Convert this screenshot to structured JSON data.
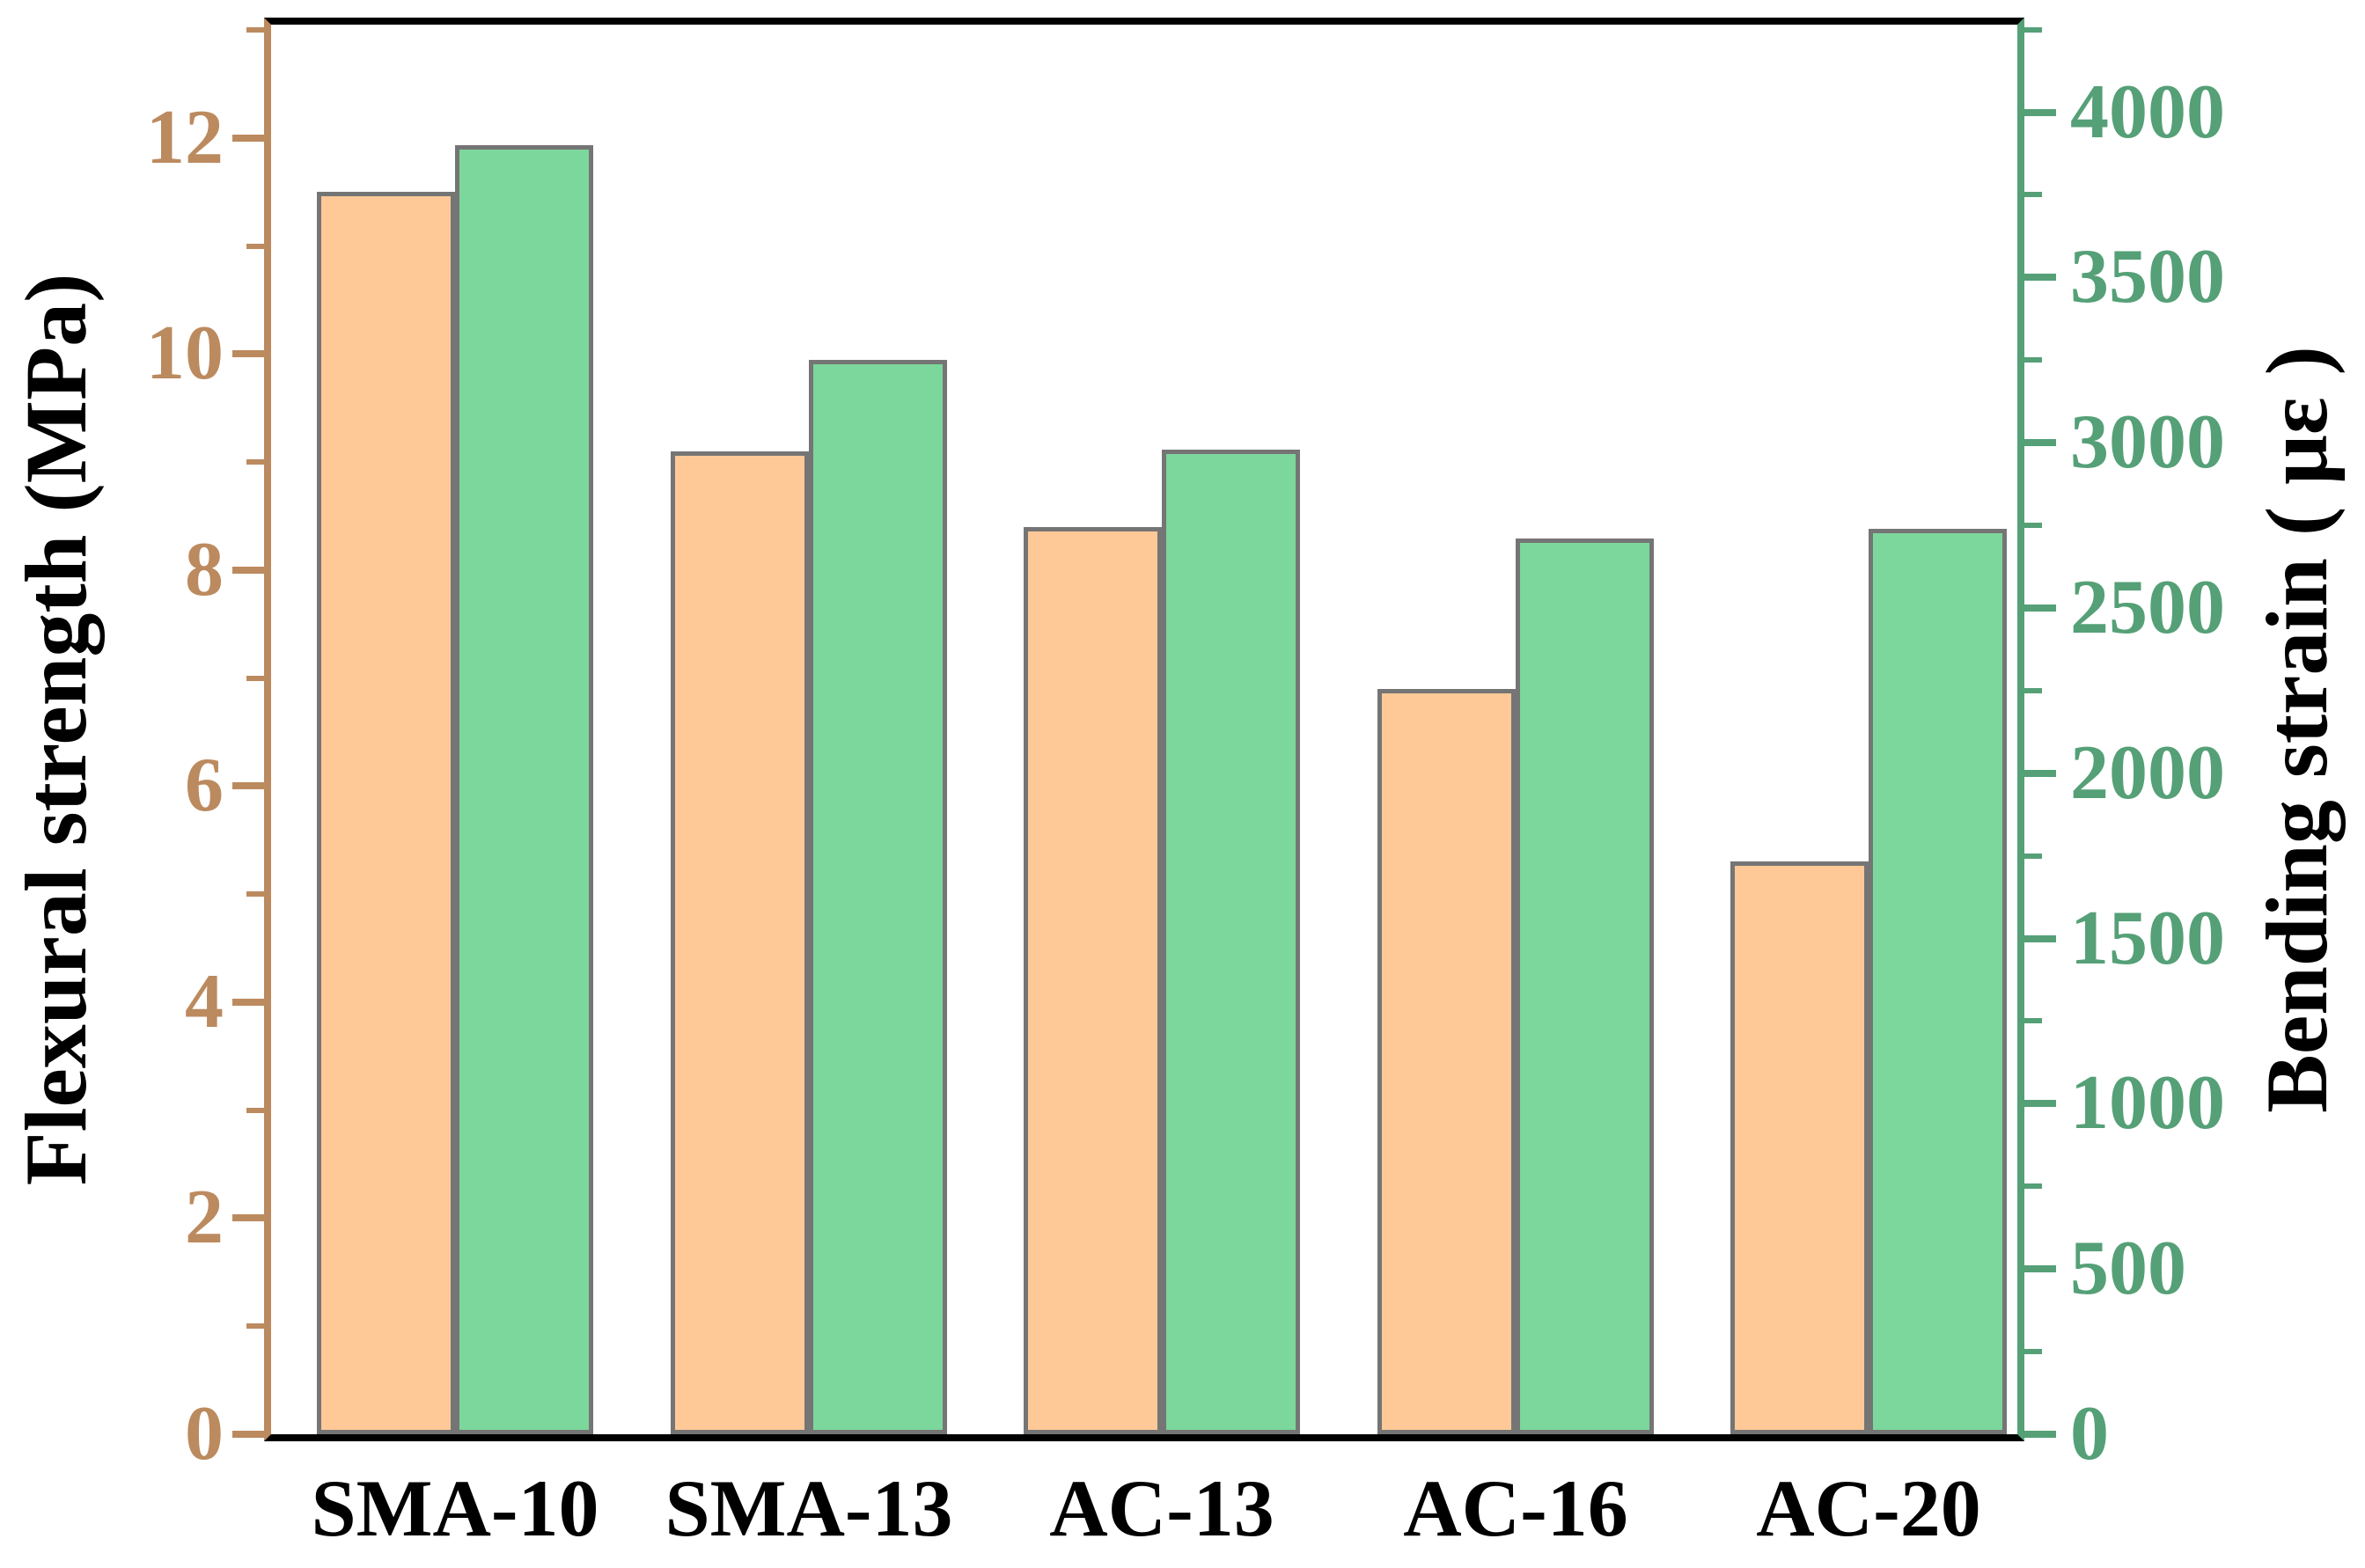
{
  "figure": {
    "background": "#ffffff"
  },
  "chart_data": {
    "type": "bar",
    "title": "",
    "categories": [
      "SMA-10",
      "SMA-13",
      "AC-13",
      "AC-16",
      "AC-20"
    ],
    "series": [
      {
        "name": "Flexural strength",
        "axis": "left",
        "color": "#fec997",
        "edge_color": "#757575",
        "values": [
          11.5,
          9.1,
          8.4,
          6.9,
          5.3
        ]
      },
      {
        "name": "Bending strain",
        "axis": "right",
        "color": "#7cd79c",
        "edge_color": "#757575",
        "values": [
          3900,
          3250,
          2980,
          2710,
          2740
        ]
      }
    ],
    "left_axis": {
      "label": "Flexural strength (MPa)",
      "color": "#bc8a5f",
      "tick_label_color": "#bc8a5f",
      "title_color": "#000000",
      "ticks": [
        0,
        2,
        4,
        6,
        8,
        10,
        12
      ],
      "minor_ticks": [
        1,
        3,
        5,
        7,
        9,
        11,
        13
      ],
      "range": [
        0,
        13.05
      ]
    },
    "right_axis": {
      "label": "Bending strain ( με )",
      "color": "#55a077",
      "tick_label_color": "#55a077",
      "title_color": "#000000",
      "ticks": [
        0,
        500,
        1000,
        1500,
        2000,
        2500,
        3000,
        3500,
        4000
      ],
      "minor_ticks": [
        250,
        750,
        1250,
        1750,
        2250,
        2750,
        3250,
        3750,
        4250
      ],
      "range": [
        0,
        4265
      ]
    },
    "x_axis": {
      "tick_label_color": "#000000"
    },
    "frame": {
      "top_color": "#000000",
      "bottom_color": "#000000"
    },
    "grid": false,
    "legend": false
  }
}
